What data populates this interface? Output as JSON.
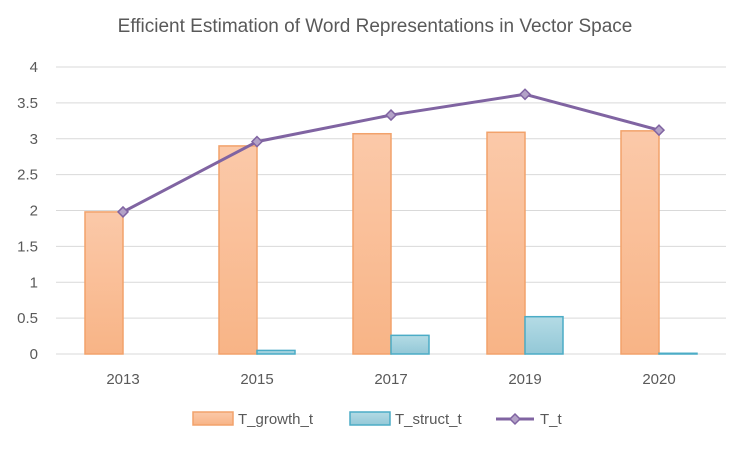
{
  "chart_data": {
    "type": "bar",
    "title": "Efficient Estimation of Word Representations in Vector Space",
    "xlabel": "",
    "ylabel": "",
    "categories": [
      "2013",
      "2015",
      "2017",
      "2019",
      "2020"
    ],
    "ylim": [
      0,
      4
    ],
    "yticks": [
      "0",
      "0.5",
      "1",
      "1.5",
      "2",
      "2.5",
      "3",
      "3.5",
      "4"
    ],
    "grid": true,
    "legend_position": "bottom",
    "series": [
      {
        "name": "T_growth_t",
        "kind": "bar",
        "values": [
          1.98,
          2.9,
          3.07,
          3.09,
          3.11
        ],
        "fill": "#FAC3A0",
        "stroke": "#F2A26B"
      },
      {
        "name": "T_struct_t",
        "kind": "bar",
        "values": [
          0,
          0.05,
          0.26,
          0.52,
          0.01
        ],
        "fill": "#9FCEDA",
        "stroke": "#4BACC6"
      },
      {
        "name": "T_t",
        "kind": "line",
        "values": [
          1.98,
          2.96,
          3.33,
          3.62,
          3.12
        ],
        "stroke": "#8064A2",
        "marker_fill": "#B3A2C7"
      }
    ],
    "colors": {
      "grid": "#D9D9D9",
      "axis_text": "#595959",
      "title": "#595959"
    }
  }
}
